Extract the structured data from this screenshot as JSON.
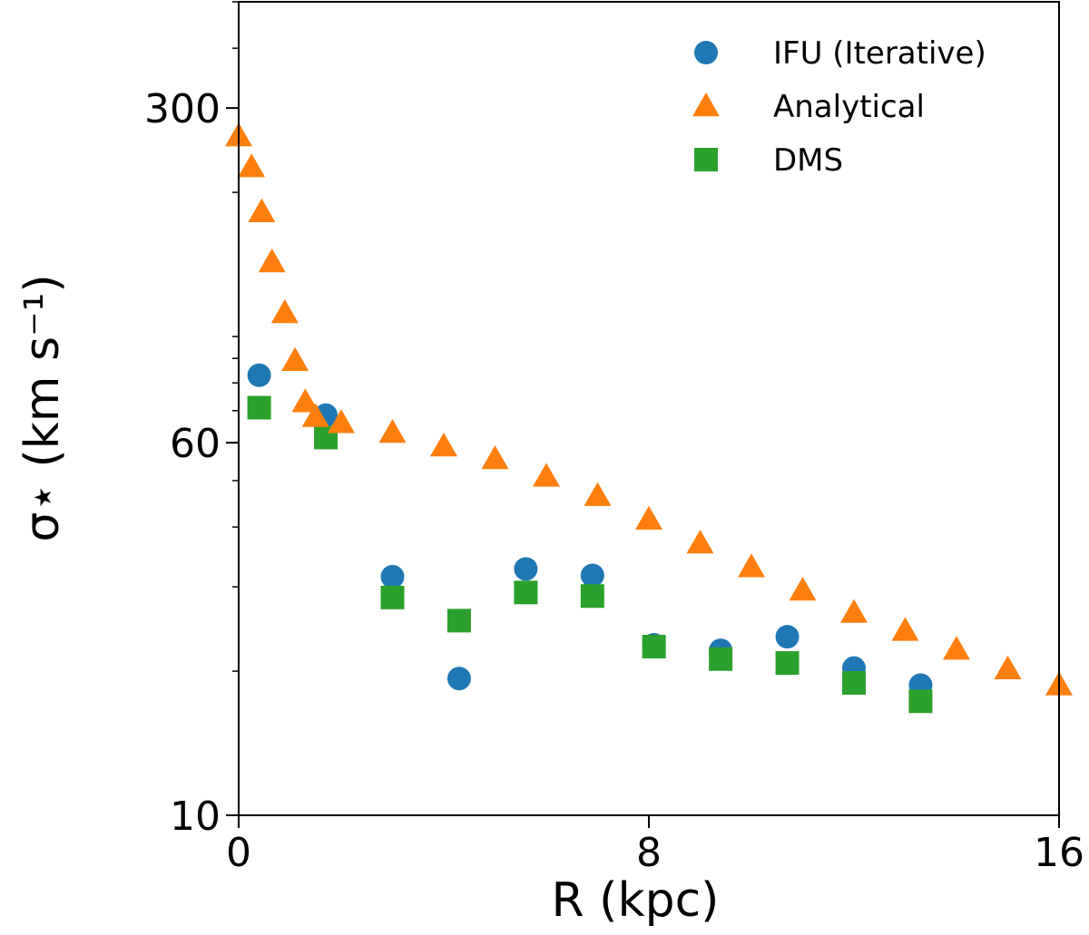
{
  "chart_data": {
    "type": "scatter",
    "xlabel": "R (kpc)",
    "ylabel": "σ⋆ (km s⁻¹)",
    "xlim": [
      0,
      16
    ],
    "ylim": [
      10,
      500
    ],
    "yscale": "log",
    "x_ticks": [
      0,
      8,
      16
    ],
    "x_tick_labels": [
      "0",
      "8",
      "16"
    ],
    "y_ticks": [
      10,
      60,
      300
    ],
    "y_tick_labels": [
      "10",
      "60",
      "300"
    ],
    "grid": false,
    "legend_position": "top-right",
    "series": [
      {
        "name": "IFU (Iterative)",
        "marker": "circle",
        "color": "#1f77b4",
        "x": [
          0.4,
          1.7,
          3.0,
          4.3,
          5.6,
          6.9,
          8.1,
          9.4,
          10.7,
          12.0,
          13.3
        ],
        "y": [
          83,
          68.5,
          31.5,
          19.3,
          32.7,
          31.7,
          22.7,
          22.1,
          23.6,
          20.3,
          18.7
        ]
      },
      {
        "name": "Analytical",
        "marker": "triangle",
        "color": "#ff7f0e",
        "x": [
          0.0,
          0.25,
          0.45,
          0.65,
          0.9,
          1.1,
          1.3,
          1.5,
          2.0,
          3.0,
          4.0,
          5.0,
          6.0,
          7.0,
          8.0,
          9.0,
          10.0,
          11.0,
          12.0,
          13.0,
          14.0,
          15.0,
          16.0
        ],
        "y": [
          262,
          226,
          182,
          143,
          112,
          89,
          73,
          68,
          66,
          63,
          59,
          55.5,
          51,
          46.5,
          41.5,
          37,
          33,
          29.5,
          26.5,
          24.3,
          22.2,
          20.2,
          18.7
        ]
      },
      {
        "name": "DMS",
        "marker": "square",
        "color": "#2ca02c",
        "x": [
          0.4,
          1.7,
          3.0,
          4.3,
          5.6,
          6.9,
          8.1,
          9.4,
          10.7,
          12.0,
          13.3
        ],
        "y": [
          71,
          61.5,
          28.5,
          25.5,
          29.2,
          28.7,
          22.5,
          21.2,
          20.8,
          18.9,
          17.3
        ]
      }
    ]
  }
}
